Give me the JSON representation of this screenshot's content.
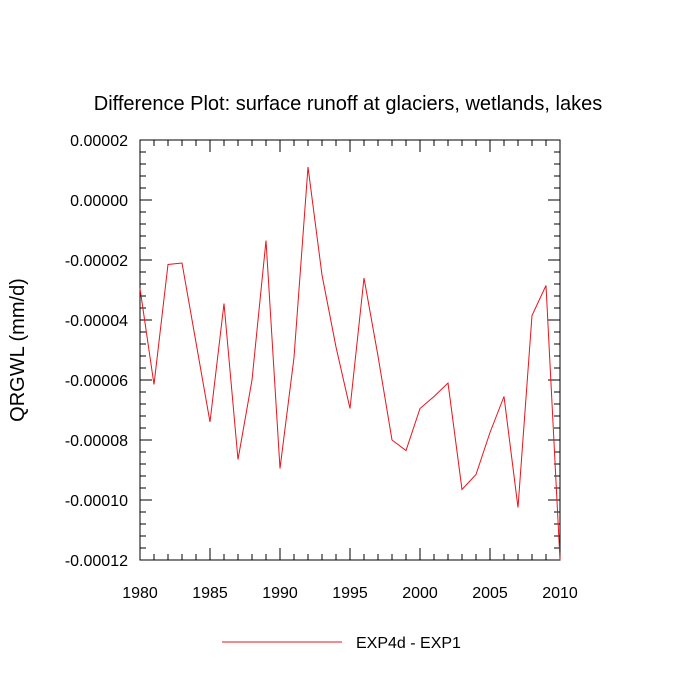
{
  "chart_data": {
    "type": "line",
    "title": "Difference Plot: surface runoff at glaciers, wetlands, lakes",
    "xlabel": "",
    "ylabel": "QRGWL  (mm/d)",
    "xlim": [
      1980,
      2010
    ],
    "ylim": [
      -0.00012,
      2e-05
    ],
    "x_ticks": [
      1980,
      1985,
      1990,
      1995,
      2000,
      2005,
      2010
    ],
    "x_tick_labels": [
      "1980",
      "1985",
      "1990",
      "1995",
      "2000",
      "2005",
      "2010"
    ],
    "y_ticks": [
      2e-05,
      0.0,
      -2e-05,
      -4e-05,
      -6e-05,
      -8e-05,
      -0.0001,
      -0.00012
    ],
    "y_tick_labels": [
      "0.00002",
      "0.00000",
      "-0.00002",
      "-0.00004",
      "-0.00006",
      "-0.00008",
      "-0.00010",
      "-0.00012"
    ],
    "grid": false,
    "legend_position": "bottom-center",
    "series": [
      {
        "name": "EXP4d - EXP1",
        "color": "#e8141b",
        "x": [
          1980,
          1981,
          1982,
          1983,
          1984,
          1985,
          1986,
          1987,
          1988,
          1989,
          1990,
          1991,
          1992,
          1993,
          1994,
          1995,
          1996,
          1997,
          1998,
          1999,
          2000,
          2001,
          2002,
          2003,
          2004,
          2005,
          2006,
          2007,
          2008,
          2009,
          2010
        ],
        "y": [
          -2.95e-05,
          -6.15e-05,
          -2.15e-05,
          -2.1e-05,
          -4.75e-05,
          -7.4e-05,
          -3.45e-05,
          -8.65e-05,
          -6e-05,
          -1.35e-05,
          -8.95e-05,
          -5.25e-05,
          1.1e-05,
          -2.5e-05,
          -4.9e-05,
          -6.95e-05,
          -2.6e-05,
          -5.2e-05,
          -8e-05,
          -8.35e-05,
          -6.95e-05,
          -6.55e-05,
          -6.1e-05,
          -9.65e-05,
          -9.15e-05,
          -7.75e-05,
          -6.55e-05,
          -0.0001025,
          -3.85e-05,
          -2.85e-05,
          -0.00012
        ]
      }
    ]
  }
}
